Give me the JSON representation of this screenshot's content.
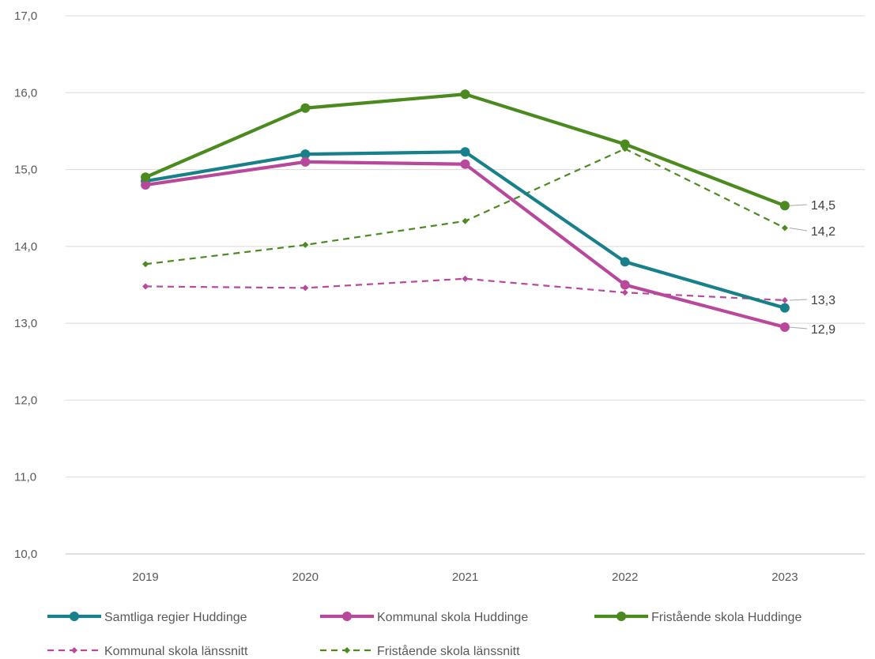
{
  "chart_data": {
    "type": "line",
    "categories": [
      "2019",
      "2020",
      "2021",
      "2022",
      "2023"
    ],
    "ylim": [
      10.0,
      17.0
    ],
    "yticks": [
      "10,0",
      "11,0",
      "12,0",
      "13,0",
      "14,0",
      "15,0",
      "16,0",
      "17,0"
    ],
    "grid": true,
    "legend_position": "bottom",
    "series": [
      {
        "name": "Samtliga regier Huddinge",
        "color": "#17808a",
        "style": "solid",
        "marker": "circle",
        "values": [
          14.85,
          15.2,
          15.23,
          13.8,
          13.2
        ]
      },
      {
        "name": "Kommunal skola Huddinge",
        "color": "#b8489b",
        "style": "solid",
        "marker": "circle",
        "values": [
          14.8,
          15.1,
          15.07,
          13.5,
          12.95
        ],
        "end_label": "12,9"
      },
      {
        "name": "Fristående skola Huddinge",
        "color": "#4a8a1e",
        "style": "solid",
        "marker": "circle",
        "values": [
          14.9,
          15.8,
          15.98,
          15.33,
          14.53
        ],
        "end_label": "14,5"
      },
      {
        "name": "Kommunal skola länssnitt",
        "color": "#b8489b",
        "style": "dashed",
        "marker": "diamond",
        "values": [
          13.48,
          13.46,
          13.58,
          13.4,
          13.3
        ],
        "end_label": "13,3"
      },
      {
        "name": "Fristående skola länssnitt",
        "color": "#4a8a1e",
        "style": "dashed",
        "marker": "diamond",
        "values": [
          13.77,
          14.02,
          14.33,
          15.27,
          14.24
        ],
        "end_label": "14,2"
      }
    ]
  }
}
